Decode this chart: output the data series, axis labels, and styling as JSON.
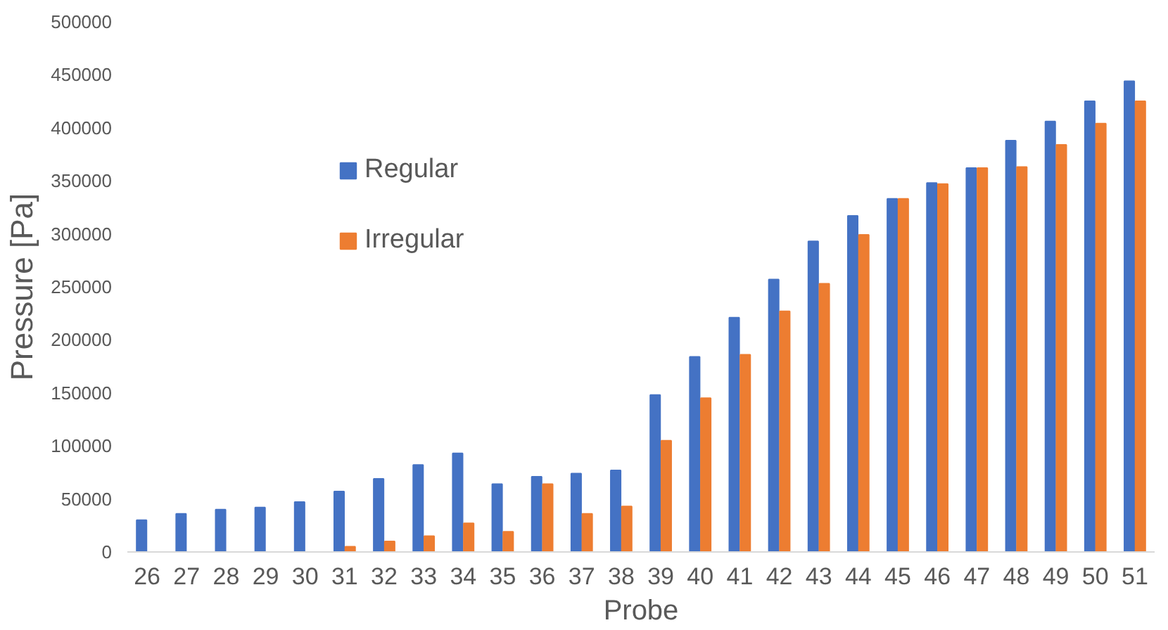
{
  "chart_data": {
    "type": "bar",
    "xlabel": "Probe",
    "ylabel": "Pressure [Pa]",
    "categories": [
      "26",
      "27",
      "28",
      "29",
      "30",
      "31",
      "32",
      "33",
      "34",
      "35",
      "36",
      "37",
      "38",
      "39",
      "40",
      "41",
      "42",
      "43",
      "44",
      "45",
      "46",
      "47",
      "48",
      "49",
      "50",
      "51"
    ],
    "series": [
      {
        "name": "Regular",
        "color": "#4472c4",
        "values": [
          30000,
          36000,
          40000,
          42000,
          47000,
          57000,
          69000,
          82000,
          93000,
          64000,
          71000,
          74000,
          77000,
          148000,
          184000,
          221000,
          257000,
          293000,
          317000,
          333000,
          348000,
          362000,
          388000,
          406000,
          425000,
          444000
        ]
      },
      {
        "name": "Irregular",
        "color": "#ed7d31",
        "values": [
          null,
          null,
          null,
          null,
          null,
          5000,
          10000,
          15000,
          27000,
          19000,
          64000,
          36000,
          43000,
          105000,
          145000,
          186000,
          227000,
          253000,
          299000,
          333000,
          347000,
          362000,
          363000,
          384000,
          404000,
          425000
        ]
      }
    ],
    "ylim": [
      0,
      500000
    ],
    "yticks": [
      0,
      50000,
      100000,
      150000,
      200000,
      250000,
      300000,
      350000,
      400000,
      450000,
      500000
    ],
    "grid": false,
    "legend": "top left"
  }
}
